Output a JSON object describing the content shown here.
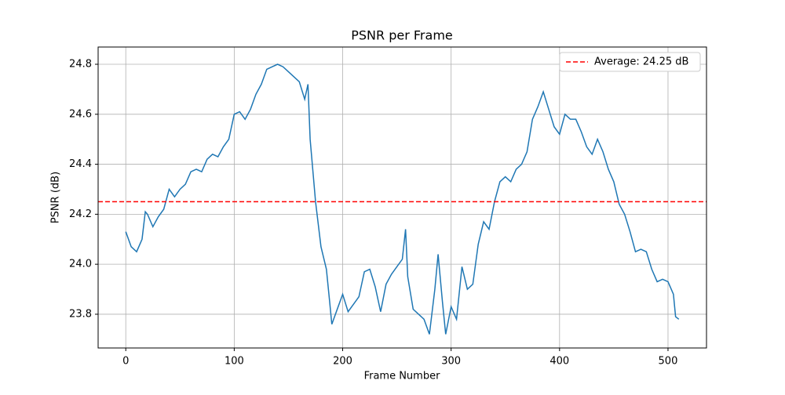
{
  "chart_data": {
    "type": "line",
    "title": "PSNR per Frame",
    "xlabel": "Frame Number",
    "ylabel": "PSNR (dB)",
    "x": [
      0,
      5,
      10,
      15,
      18,
      20,
      25,
      30,
      35,
      40,
      45,
      50,
      55,
      60,
      65,
      70,
      75,
      80,
      85,
      90,
      95,
      100,
      105,
      110,
      115,
      120,
      125,
      130,
      135,
      140,
      145,
      150,
      155,
      160,
      165,
      168,
      170,
      175,
      180,
      185,
      188,
      190,
      195,
      200,
      205,
      210,
      215,
      220,
      225,
      230,
      235,
      240,
      245,
      250,
      255,
      258,
      260,
      265,
      270,
      275,
      280,
      285,
      288,
      292,
      295,
      300,
      305,
      310,
      315,
      320,
      325,
      330,
      335,
      340,
      345,
      350,
      355,
      360,
      365,
      370,
      375,
      380,
      385,
      390,
      395,
      400,
      405,
      410,
      415,
      420,
      425,
      430,
      435,
      440,
      445,
      450,
      455,
      460,
      465,
      470,
      475,
      480,
      485,
      490,
      495,
      500,
      505,
      507,
      510
    ],
    "series": [
      {
        "color": "#1f77b4",
        "values": [
          24.13,
          24.07,
          24.05,
          24.1,
          24.21,
          24.2,
          24.15,
          24.19,
          24.22,
          24.3,
          24.27,
          24.3,
          24.32,
          24.37,
          24.38,
          24.37,
          24.42,
          24.44,
          24.43,
          24.47,
          24.5,
          24.6,
          24.61,
          24.58,
          24.62,
          24.68,
          24.72,
          24.78,
          24.79,
          24.8,
          24.79,
          24.77,
          24.75,
          24.73,
          24.66,
          24.72,
          24.5,
          24.25,
          24.07,
          23.98,
          23.85,
          23.76,
          23.82,
          23.88,
          23.81,
          23.84,
          23.87,
          23.97,
          23.98,
          23.91,
          23.81,
          23.92,
          23.96,
          23.99,
          24.02,
          24.14,
          23.95,
          23.82,
          23.8,
          23.78,
          23.72,
          23.9,
          24.04,
          23.85,
          23.72,
          23.83,
          23.78,
          23.99,
          23.9,
          23.92,
          24.08,
          24.17,
          24.14,
          24.25,
          24.33,
          24.35,
          24.33,
          24.38,
          24.4,
          24.45,
          24.58,
          24.63,
          24.69,
          24.62,
          24.55,
          24.52,
          24.6,
          24.58,
          24.58,
          24.53,
          24.47,
          24.44,
          24.5,
          24.45,
          24.38,
          24.33,
          24.24,
          24.2,
          24.13,
          24.05,
          24.06,
          24.05,
          23.98,
          23.93,
          23.94,
          23.93,
          23.88,
          23.79,
          23.78
        ]
      }
    ],
    "hlines": [
      {
        "value": 24.25,
        "label": "Average: 24.25 dB",
        "color": "#ff0000",
        "linestyle": "dashed"
      }
    ],
    "xlim": [
      -25.5,
      535.5
    ],
    "xticks": [
      0,
      100,
      200,
      300,
      400,
      500
    ],
    "ylim": [
      23.665,
      24.869
    ],
    "yticks": [
      23.8,
      {
        "value": 24,
        "label": "24.0"
      },
      24.2,
      24.4,
      24.6,
      24.8
    ],
    "grid": true,
    "legend_loc": "upper right"
  }
}
